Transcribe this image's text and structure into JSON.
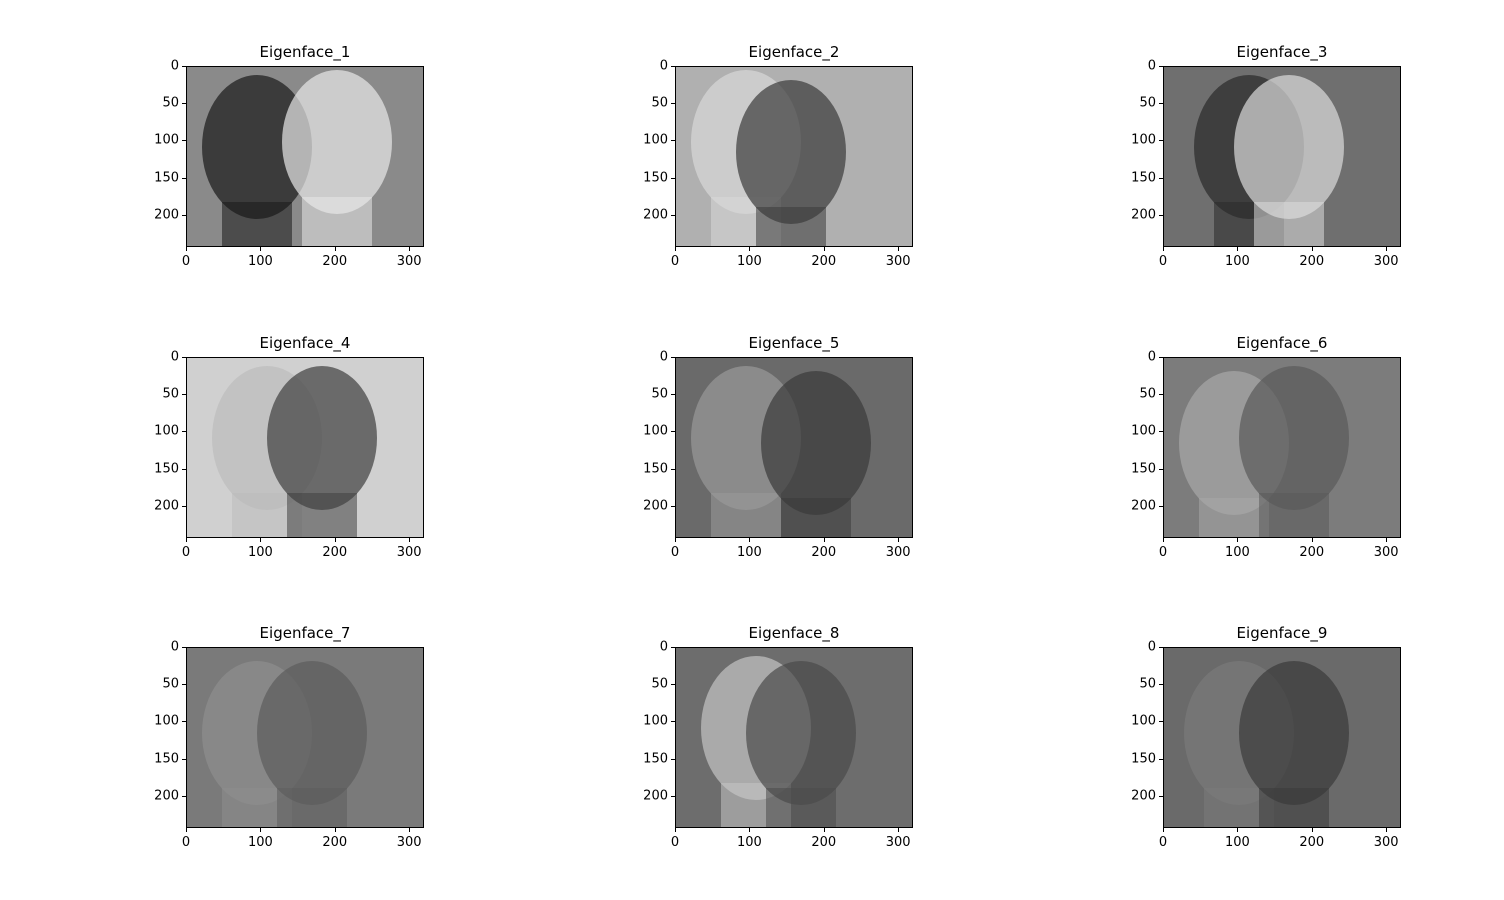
{
  "chart_data": [
    {
      "type": "heatmap",
      "title": "Eigenface_1",
      "xticks": [
        0,
        100,
        200,
        300
      ],
      "yticks": [
        0,
        50,
        100,
        150,
        200
      ],
      "xlim": [
        0,
        320
      ],
      "ylim": [
        243,
        0
      ],
      "colormap": "gray",
      "grid": false
    },
    {
      "type": "heatmap",
      "title": "Eigenface_2",
      "xticks": [
        0,
        100,
        200,
        300
      ],
      "yticks": [
        0,
        50,
        100,
        150,
        200
      ],
      "xlim": [
        0,
        320
      ],
      "ylim": [
        243,
        0
      ],
      "colormap": "gray",
      "grid": false
    },
    {
      "type": "heatmap",
      "title": "Eigenface_3",
      "xticks": [
        0,
        100,
        200,
        300
      ],
      "yticks": [
        0,
        50,
        100,
        150,
        200
      ],
      "xlim": [
        0,
        320
      ],
      "ylim": [
        243,
        0
      ],
      "colormap": "gray",
      "grid": false
    },
    {
      "type": "heatmap",
      "title": "Eigenface_4",
      "xticks": [
        0,
        100,
        200,
        300
      ],
      "yticks": [
        0,
        50,
        100,
        150,
        200
      ],
      "xlim": [
        0,
        320
      ],
      "ylim": [
        243,
        0
      ],
      "colormap": "gray",
      "grid": false
    },
    {
      "type": "heatmap",
      "title": "Eigenface_5",
      "xticks": [
        0,
        100,
        200,
        300
      ],
      "yticks": [
        0,
        50,
        100,
        150,
        200
      ],
      "xlim": [
        0,
        320
      ],
      "ylim": [
        243,
        0
      ],
      "colormap": "gray",
      "grid": false
    },
    {
      "type": "heatmap",
      "title": "Eigenface_6",
      "xticks": [
        0,
        100,
        200,
        300
      ],
      "yticks": [
        0,
        50,
        100,
        150,
        200
      ],
      "xlim": [
        0,
        320
      ],
      "ylim": [
        243,
        0
      ],
      "colormap": "gray",
      "grid": false
    },
    {
      "type": "heatmap",
      "title": "Eigenface_7",
      "xticks": [
        0,
        100,
        200,
        300
      ],
      "yticks": [
        0,
        50,
        100,
        150,
        200
      ],
      "xlim": [
        0,
        320
      ],
      "ylim": [
        243,
        0
      ],
      "colormap": "gray",
      "grid": false
    },
    {
      "type": "heatmap",
      "title": "Eigenface_8",
      "xticks": [
        0,
        100,
        200,
        300
      ],
      "yticks": [
        0,
        50,
        100,
        150,
        200
      ],
      "xlim": [
        0,
        320
      ],
      "ylim": [
        243,
        0
      ],
      "colormap": "gray",
      "grid": false
    },
    {
      "type": "heatmap",
      "title": "Eigenface_9",
      "xticks": [
        0,
        100,
        200,
        300
      ],
      "yticks": [
        0,
        50,
        100,
        150,
        200
      ],
      "xlim": [
        0,
        320
      ],
      "ylim": [
        243,
        0
      ],
      "colormap": "gray",
      "grid": false
    }
  ],
  "colors": {
    "frame": "#000000",
    "background": "#ffffff"
  }
}
